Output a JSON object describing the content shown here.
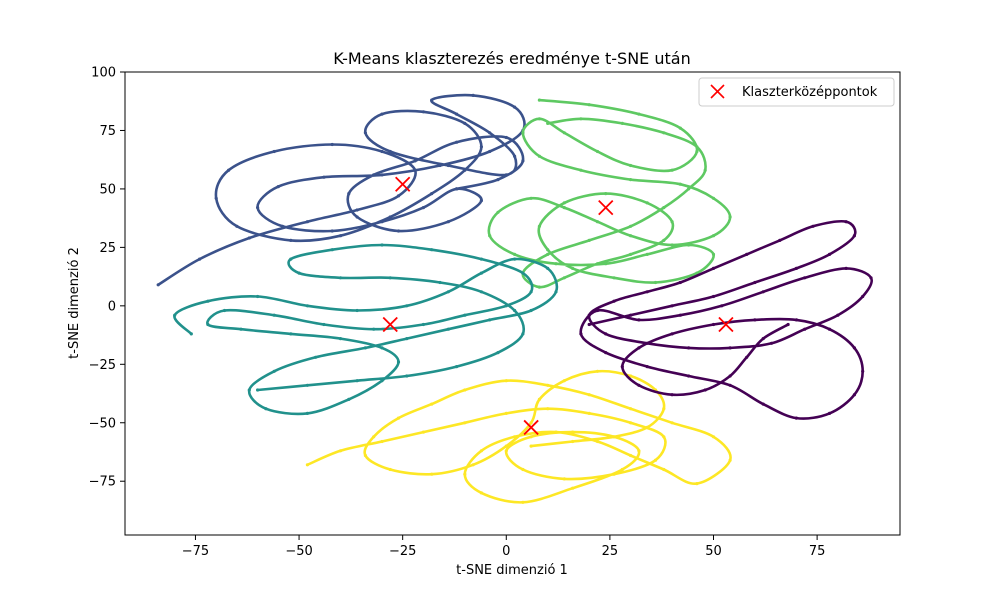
{
  "chart_data": {
    "type": "scatter",
    "title": "K-Means klaszterezés eredménye t-SNE után",
    "xlabel": "t-SNE dimenzió 1",
    "ylabel": "t-SNE dimenzió 2",
    "xlim": [
      -92,
      95
    ],
    "ylim": [
      -98,
      100
    ],
    "xticks": [
      -75,
      -50,
      -25,
      0,
      25,
      50,
      75
    ],
    "yticks": [
      -75,
      -50,
      -25,
      0,
      25,
      50,
      75,
      100
    ],
    "grid": false,
    "legend": {
      "placement": "top-right",
      "entries": [
        "Klaszterközéppontok"
      ]
    },
    "series": [
      {
        "color": "#3b528b",
        "points": [
          [
            -84,
            9
          ],
          [
            -74,
            20
          ],
          [
            -62,
            29
          ],
          [
            -48,
            36
          ],
          [
            -36,
            41
          ],
          [
            -26,
            47
          ],
          [
            -22,
            58
          ],
          [
            -30,
            66
          ],
          [
            -42,
            69
          ],
          [
            -56,
            66
          ],
          [
            -67,
            58
          ],
          [
            -70,
            46
          ],
          [
            -65,
            34
          ],
          [
            -52,
            28
          ],
          [
            -40,
            30
          ],
          [
            -28,
            38
          ],
          [
            -18,
            48
          ],
          [
            -10,
            58
          ],
          [
            -6,
            68
          ],
          [
            -10,
            78
          ],
          [
            -20,
            83
          ],
          [
            -30,
            82
          ],
          [
            -34,
            74
          ],
          [
            -28,
            66
          ],
          [
            -14,
            60
          ],
          [
            0,
            56
          ],
          [
            2,
            64
          ],
          [
            -4,
            74
          ],
          [
            -12,
            82
          ],
          [
            -18,
            88
          ],
          [
            -8,
            90
          ],
          [
            2,
            85
          ],
          [
            4,
            75
          ],
          [
            -4,
            66
          ],
          [
            -16,
            60
          ],
          [
            -30,
            56
          ],
          [
            -44,
            55
          ],
          [
            -55,
            51
          ],
          [
            -60,
            42
          ],
          [
            -54,
            34
          ],
          [
            -42,
            32
          ],
          [
            -30,
            36
          ],
          [
            -20,
            42
          ],
          [
            -12,
            50
          ],
          [
            -6,
            45
          ],
          [
            -14,
            36
          ],
          [
            -26,
            32
          ],
          [
            -36,
            38
          ],
          [
            -38,
            48
          ],
          [
            -32,
            56
          ],
          [
            -22,
            62
          ],
          [
            -12,
            70
          ],
          [
            0,
            72
          ],
          [
            4,
            62
          ],
          [
            -2,
            54
          ],
          [
            -12,
            50
          ]
        ]
      },
      {
        "color": "#5ec962",
        "points": [
          [
            8,
            88
          ],
          [
            20,
            86
          ],
          [
            32,
            82
          ],
          [
            42,
            76
          ],
          [
            46,
            66
          ],
          [
            40,
            58
          ],
          [
            30,
            60
          ],
          [
            22,
            66
          ],
          [
            14,
            74
          ],
          [
            8,
            80
          ],
          [
            4,
            74
          ],
          [
            8,
            64
          ],
          [
            18,
            58
          ],
          [
            30,
            54
          ],
          [
            42,
            52
          ],
          [
            50,
            46
          ],
          [
            54,
            38
          ],
          [
            50,
            30
          ],
          [
            40,
            26
          ],
          [
            30,
            30
          ],
          [
            22,
            36
          ],
          [
            14,
            42
          ],
          [
            6,
            46
          ],
          [
            -2,
            40
          ],
          [
            -4,
            30
          ],
          [
            2,
            22
          ],
          [
            12,
            18
          ],
          [
            24,
            18
          ],
          [
            34,
            22
          ],
          [
            44,
            26
          ],
          [
            50,
            22
          ],
          [
            46,
            14
          ],
          [
            36,
            10
          ],
          [
            26,
            12
          ],
          [
            16,
            16
          ],
          [
            10,
            24
          ],
          [
            8,
            34
          ],
          [
            14,
            44
          ],
          [
            24,
            48
          ],
          [
            34,
            44
          ],
          [
            40,
            36
          ],
          [
            38,
            28
          ],
          [
            30,
            22
          ],
          [
            22,
            18
          ],
          [
            14,
            12
          ],
          [
            8,
            8
          ],
          [
            4,
            14
          ],
          [
            10,
            22
          ],
          [
            20,
            28
          ],
          [
            30,
            34
          ],
          [
            38,
            42
          ],
          [
            44,
            50
          ],
          [
            48,
            58
          ],
          [
            46,
            68
          ],
          [
            38,
            74
          ],
          [
            28,
            78
          ],
          [
            18,
            80
          ],
          [
            10,
            78
          ]
        ]
      },
      {
        "color": "#21918c",
        "points": [
          [
            -76,
            -12
          ],
          [
            -80,
            -4
          ],
          [
            -72,
            2
          ],
          [
            -60,
            4
          ],
          [
            -48,
            0
          ],
          [
            -36,
            -2
          ],
          [
            -24,
            0
          ],
          [
            -14,
            6
          ],
          [
            -6,
            14
          ],
          [
            2,
            20
          ],
          [
            10,
            16
          ],
          [
            12,
            6
          ],
          [
            6,
            -2
          ],
          [
            -4,
            -6
          ],
          [
            -14,
            -10
          ],
          [
            -24,
            -14
          ],
          [
            -34,
            -18
          ],
          [
            -46,
            -22
          ],
          [
            -56,
            -28
          ],
          [
            -62,
            -36
          ],
          [
            -58,
            -44
          ],
          [
            -48,
            -46
          ],
          [
            -38,
            -40
          ],
          [
            -30,
            -32
          ],
          [
            -26,
            -24
          ],
          [
            -30,
            -18
          ],
          [
            -40,
            -14
          ],
          [
            -52,
            -12
          ],
          [
            -64,
            -10
          ],
          [
            -72,
            -8
          ],
          [
            -68,
            -2
          ],
          [
            -56,
            -4
          ],
          [
            -44,
            -8
          ],
          [
            -32,
            -10
          ],
          [
            -20,
            -8
          ],
          [
            -10,
            -4
          ],
          [
            0,
            0
          ],
          [
            6,
            6
          ],
          [
            4,
            14
          ],
          [
            -6,
            20
          ],
          [
            -18,
            24
          ],
          [
            -30,
            26
          ],
          [
            -42,
            24
          ],
          [
            -52,
            20
          ],
          [
            -50,
            14
          ],
          [
            -40,
            12
          ],
          [
            -28,
            12
          ],
          [
            -16,
            10
          ],
          [
            -6,
            6
          ],
          [
            2,
            -2
          ],
          [
            4,
            -12
          ],
          [
            -2,
            -20
          ],
          [
            -12,
            -26
          ],
          [
            -24,
            -30
          ],
          [
            -36,
            -32
          ],
          [
            -48,
            -34
          ],
          [
            -60,
            -36
          ]
        ]
      },
      {
        "color": "#fde725",
        "points": [
          [
            -48,
            -68
          ],
          [
            -40,
            -62
          ],
          [
            -30,
            -58
          ],
          [
            -20,
            -54
          ],
          [
            -10,
            -50
          ],
          [
            0,
            -46
          ],
          [
            10,
            -44
          ],
          [
            20,
            -46
          ],
          [
            30,
            -50
          ],
          [
            38,
            -56
          ],
          [
            36,
            -66
          ],
          [
            26,
            -72
          ],
          [
            14,
            -74
          ],
          [
            4,
            -70
          ],
          [
            0,
            -62
          ],
          [
            6,
            -56
          ],
          [
            16,
            -54
          ],
          [
            26,
            -56
          ],
          [
            32,
            -62
          ],
          [
            28,
            -70
          ],
          [
            16,
            -78
          ],
          [
            4,
            -84
          ],
          [
            -6,
            -80
          ],
          [
            -10,
            -72
          ],
          [
            -6,
            -62
          ],
          [
            2,
            -56
          ],
          [
            12,
            -54
          ],
          [
            22,
            -58
          ],
          [
            30,
            -64
          ],
          [
            38,
            -70
          ],
          [
            46,
            -76
          ],
          [
            54,
            -66
          ],
          [
            50,
            -56
          ],
          [
            40,
            -50
          ],
          [
            30,
            -44
          ],
          [
            20,
            -38
          ],
          [
            10,
            -34
          ],
          [
            0,
            -32
          ],
          [
            -10,
            -36
          ],
          [
            -18,
            -42
          ],
          [
            -26,
            -48
          ],
          [
            -32,
            -56
          ],
          [
            -34,
            -64
          ],
          [
            -28,
            -70
          ],
          [
            -18,
            -72
          ],
          [
            -8,
            -68
          ],
          [
            0,
            -60
          ],
          [
            6,
            -50
          ],
          [
            8,
            -40
          ],
          [
            14,
            -32
          ],
          [
            22,
            -28
          ],
          [
            30,
            -30
          ],
          [
            36,
            -36
          ],
          [
            38,
            -44
          ],
          [
            34,
            -52
          ],
          [
            26,
            -56
          ],
          [
            16,
            -58
          ],
          [
            6,
            -60
          ]
        ]
      },
      {
        "color": "#440154",
        "points": [
          [
            20,
            -8
          ],
          [
            30,
            -4
          ],
          [
            40,
            0
          ],
          [
            50,
            4
          ],
          [
            60,
            10
          ],
          [
            70,
            16
          ],
          [
            78,
            22
          ],
          [
            84,
            30
          ],
          [
            82,
            36
          ],
          [
            74,
            34
          ],
          [
            66,
            28
          ],
          [
            58,
            22
          ],
          [
            50,
            16
          ],
          [
            42,
            10
          ],
          [
            34,
            6
          ],
          [
            26,
            2
          ],
          [
            20,
            -4
          ],
          [
            24,
            -12
          ],
          [
            34,
            -16
          ],
          [
            44,
            -18
          ],
          [
            54,
            -18
          ],
          [
            64,
            -16
          ],
          [
            72,
            -10
          ],
          [
            80,
            -4
          ],
          [
            86,
            4
          ],
          [
            88,
            12
          ],
          [
            82,
            16
          ],
          [
            72,
            12
          ],
          [
            62,
            6
          ],
          [
            52,
            0
          ],
          [
            42,
            -4
          ],
          [
            32,
            -6
          ],
          [
            22,
            -2
          ],
          [
            18,
            -12
          ],
          [
            24,
            -20
          ],
          [
            34,
            -26
          ],
          [
            44,
            -30
          ],
          [
            54,
            -34
          ],
          [
            62,
            -42
          ],
          [
            70,
            -48
          ],
          [
            78,
            -46
          ],
          [
            84,
            -38
          ],
          [
            86,
            -28
          ],
          [
            84,
            -18
          ],
          [
            78,
            -10
          ],
          [
            70,
            -6
          ],
          [
            60,
            -6
          ],
          [
            50,
            -8
          ],
          [
            40,
            -12
          ],
          [
            32,
            -18
          ],
          [
            28,
            -26
          ],
          [
            32,
            -34
          ],
          [
            40,
            -38
          ],
          [
            48,
            -36
          ],
          [
            54,
            -30
          ],
          [
            58,
            -22
          ],
          [
            62,
            -14
          ],
          [
            68,
            -8
          ]
        ]
      }
    ],
    "centroids": {
      "name": "Klaszterközéppontok",
      "color": "#ff0000",
      "marker": "x",
      "points": [
        [
          -25,
          52
        ],
        [
          24,
          42
        ],
        [
          -28,
          -8
        ],
        [
          53,
          -8
        ],
        [
          6,
          -52
        ]
      ]
    }
  }
}
